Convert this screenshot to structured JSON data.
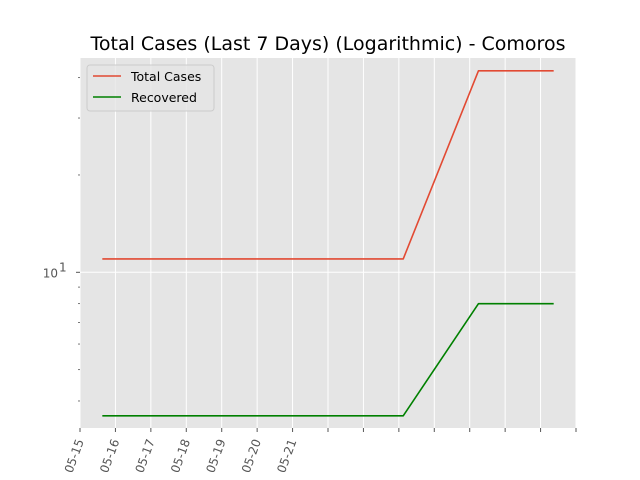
{
  "chart_data": {
    "type": "line",
    "title": "Total Cases (Last 7 Days) (Logarithmic) - Comoros",
    "xlabel": "",
    "ylabel": "",
    "y_scale": "log",
    "ylim": [
      3.3,
      46
    ],
    "grid": true,
    "legend_position": "top-left",
    "x_tick_labels": [
      "05-15",
      "05-16",
      "05-17",
      "05-18",
      "05-19",
      "05-20",
      "05-21",
      "",
      "",
      "",
      "",
      "",
      "",
      "",
      ""
    ],
    "y_tick_labels": [
      {
        "value": 10,
        "base": "10",
        "exp": "1"
      }
    ],
    "x": [
      "05-15",
      "05-16",
      "05-17",
      "05-18",
      "05-19",
      "05-20",
      "05-21"
    ],
    "series": [
      {
        "name": "Total Cases",
        "color": "#E24A33",
        "values": [
          11,
          11,
          11,
          11,
          11,
          42,
          42
        ]
      },
      {
        "name": "Recovered",
        "color": "#008000",
        "values": [
          3.6,
          3.6,
          3.6,
          3.6,
          3.6,
          8,
          8
        ]
      }
    ]
  },
  "colors": {
    "plot_background": "#E5E5E5",
    "grid": "#FFFFFF"
  }
}
